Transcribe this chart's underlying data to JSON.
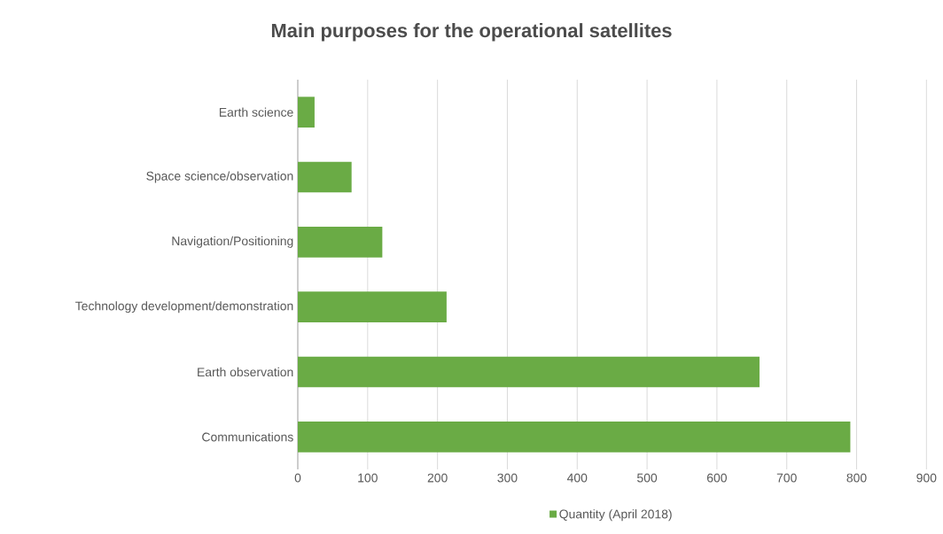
{
  "chart_data": {
    "type": "bar",
    "title": "Main purposes for the operational satellites",
    "orientation": "horizontal",
    "categories": [
      "Earth science",
      "Space science/observation",
      "Navigation/Positioning",
      "Technology development/demonstration",
      "Earth observation",
      "Communications"
    ],
    "series": [
      {
        "name": "Quantity (April 2018)",
        "color": "#6aab45",
        "values": [
          24,
          77,
          121,
          213,
          661,
          791
        ]
      }
    ],
    "xlim": [
      0,
      900
    ],
    "xticks": [
      0,
      100,
      200,
      300,
      400,
      500,
      600,
      700,
      800,
      900
    ],
    "grid": "x",
    "legend": "bottom"
  }
}
